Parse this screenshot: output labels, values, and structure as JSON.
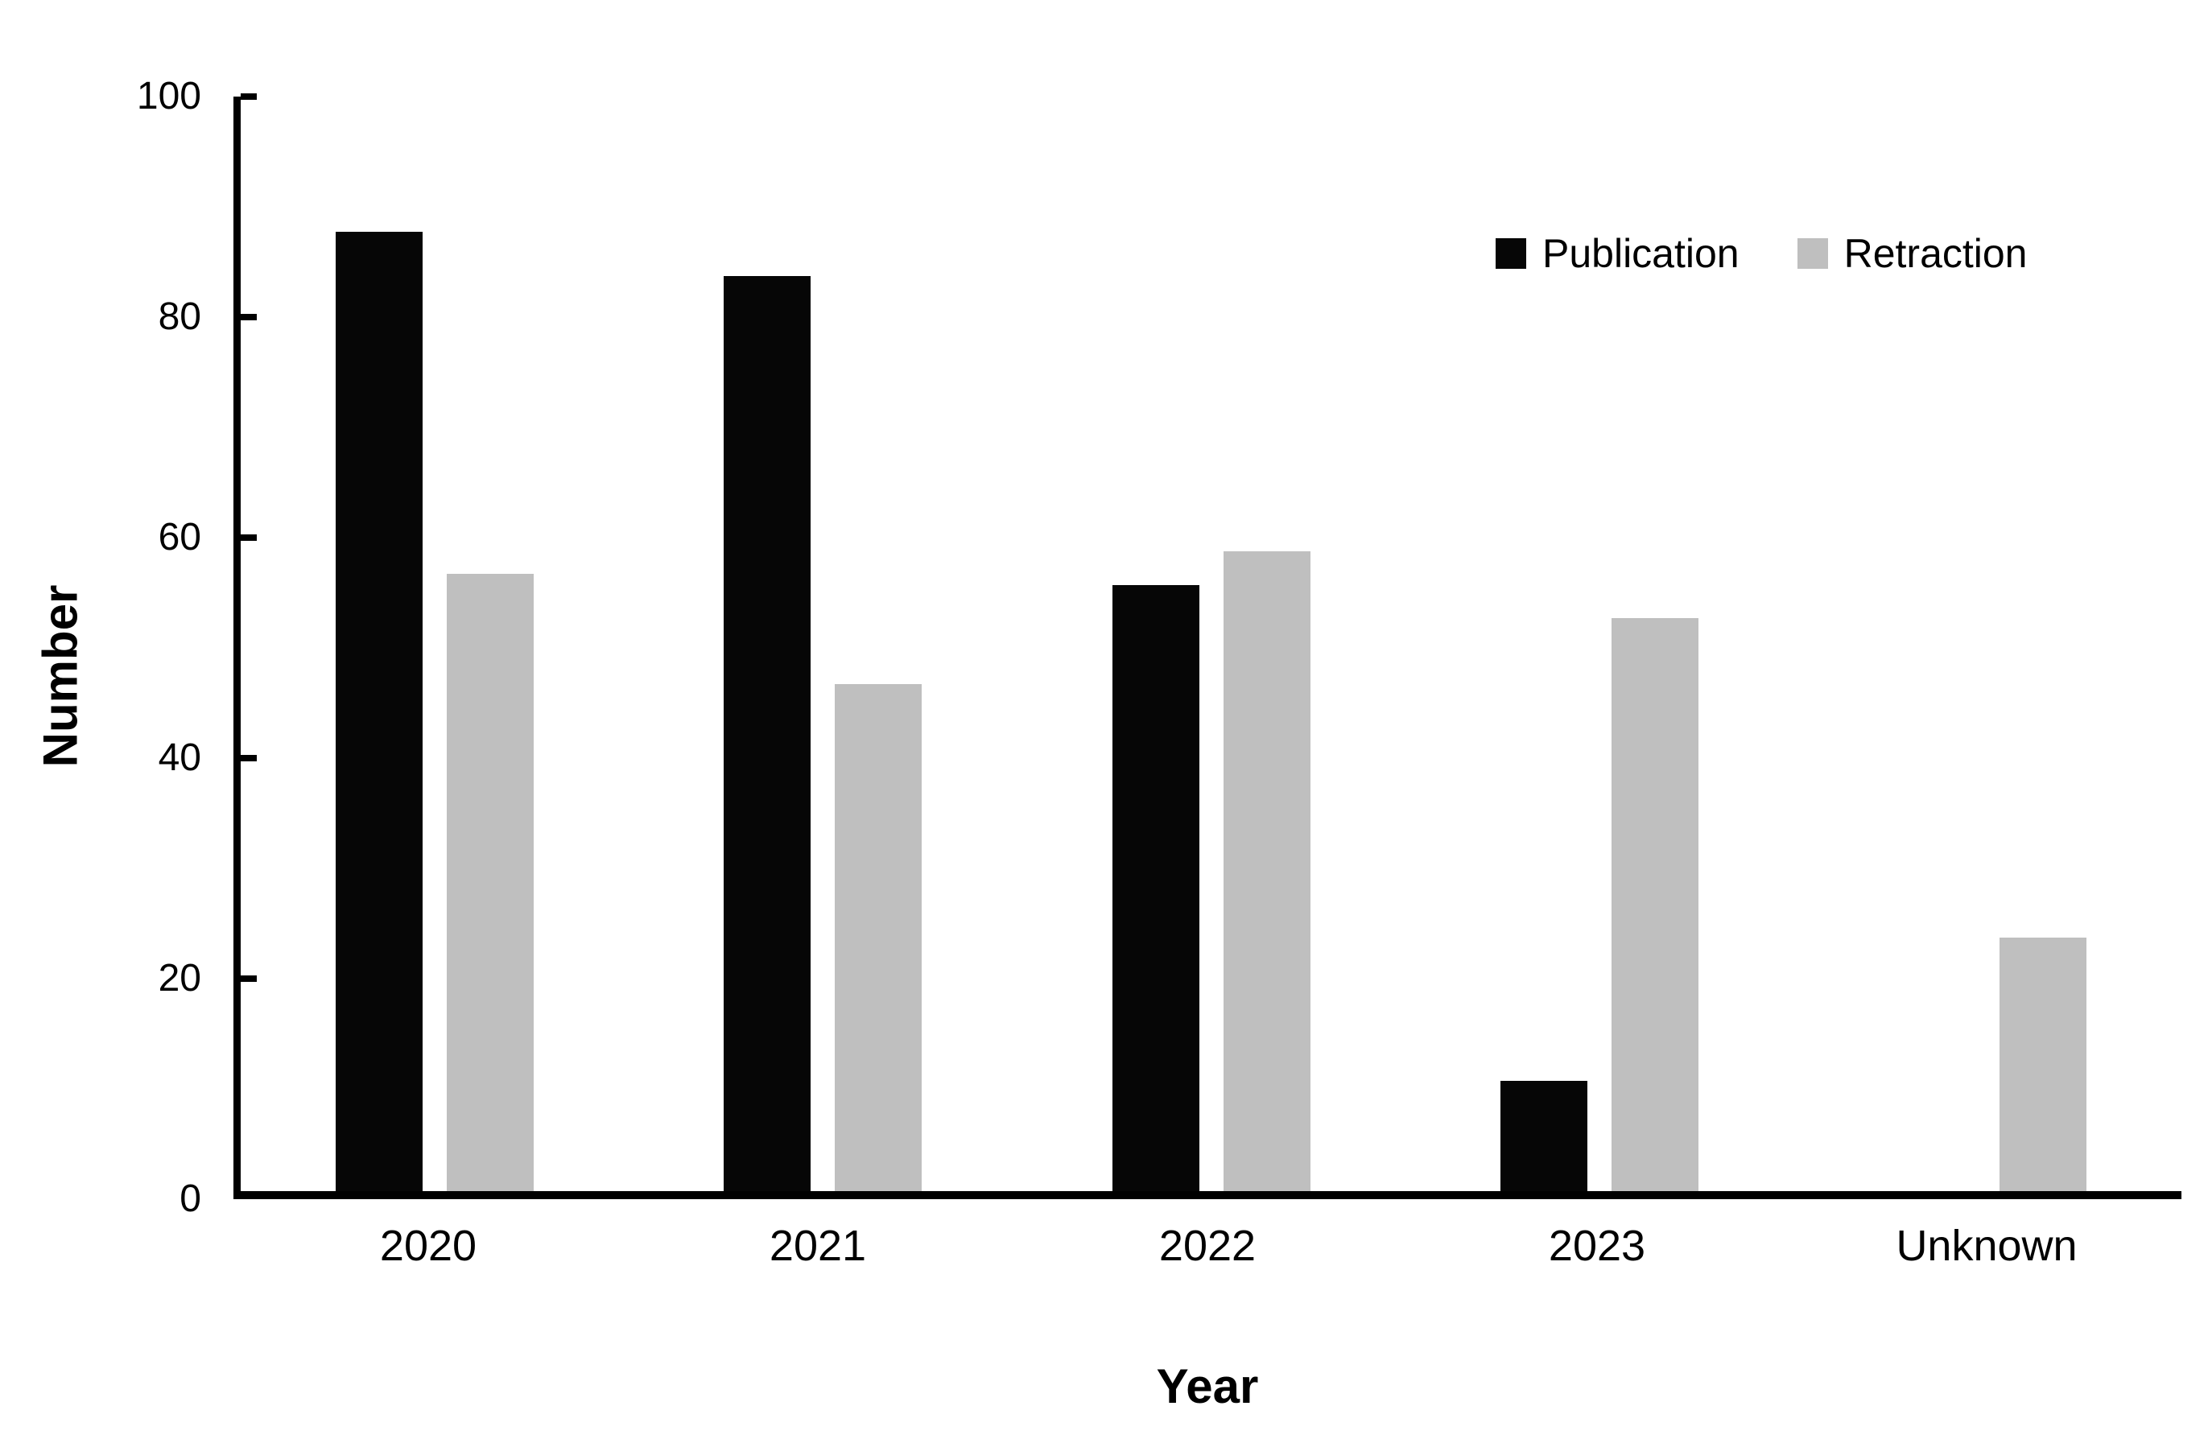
{
  "chart_data": {
    "type": "bar",
    "title": "",
    "xlabel": "Year",
    "ylabel": "Number",
    "categories": [
      "2020",
      "2021",
      "2022",
      "2023",
      "Unknown"
    ],
    "series": [
      {
        "name": "Publication",
        "color": "#060606",
        "values": [
          87,
          83,
          55,
          10,
          0
        ]
      },
      {
        "name": "Retraction",
        "color": "#bfbfbf",
        "values": [
          56,
          46,
          58,
          52,
          23
        ]
      }
    ],
    "ylim": [
      0,
      100
    ],
    "yticks": [
      0,
      20,
      40,
      60,
      80,
      100
    ],
    "grid": false,
    "legend_position": "top-right-inside",
    "background_color": "#ffffff",
    "axis_color": "#000000"
  }
}
